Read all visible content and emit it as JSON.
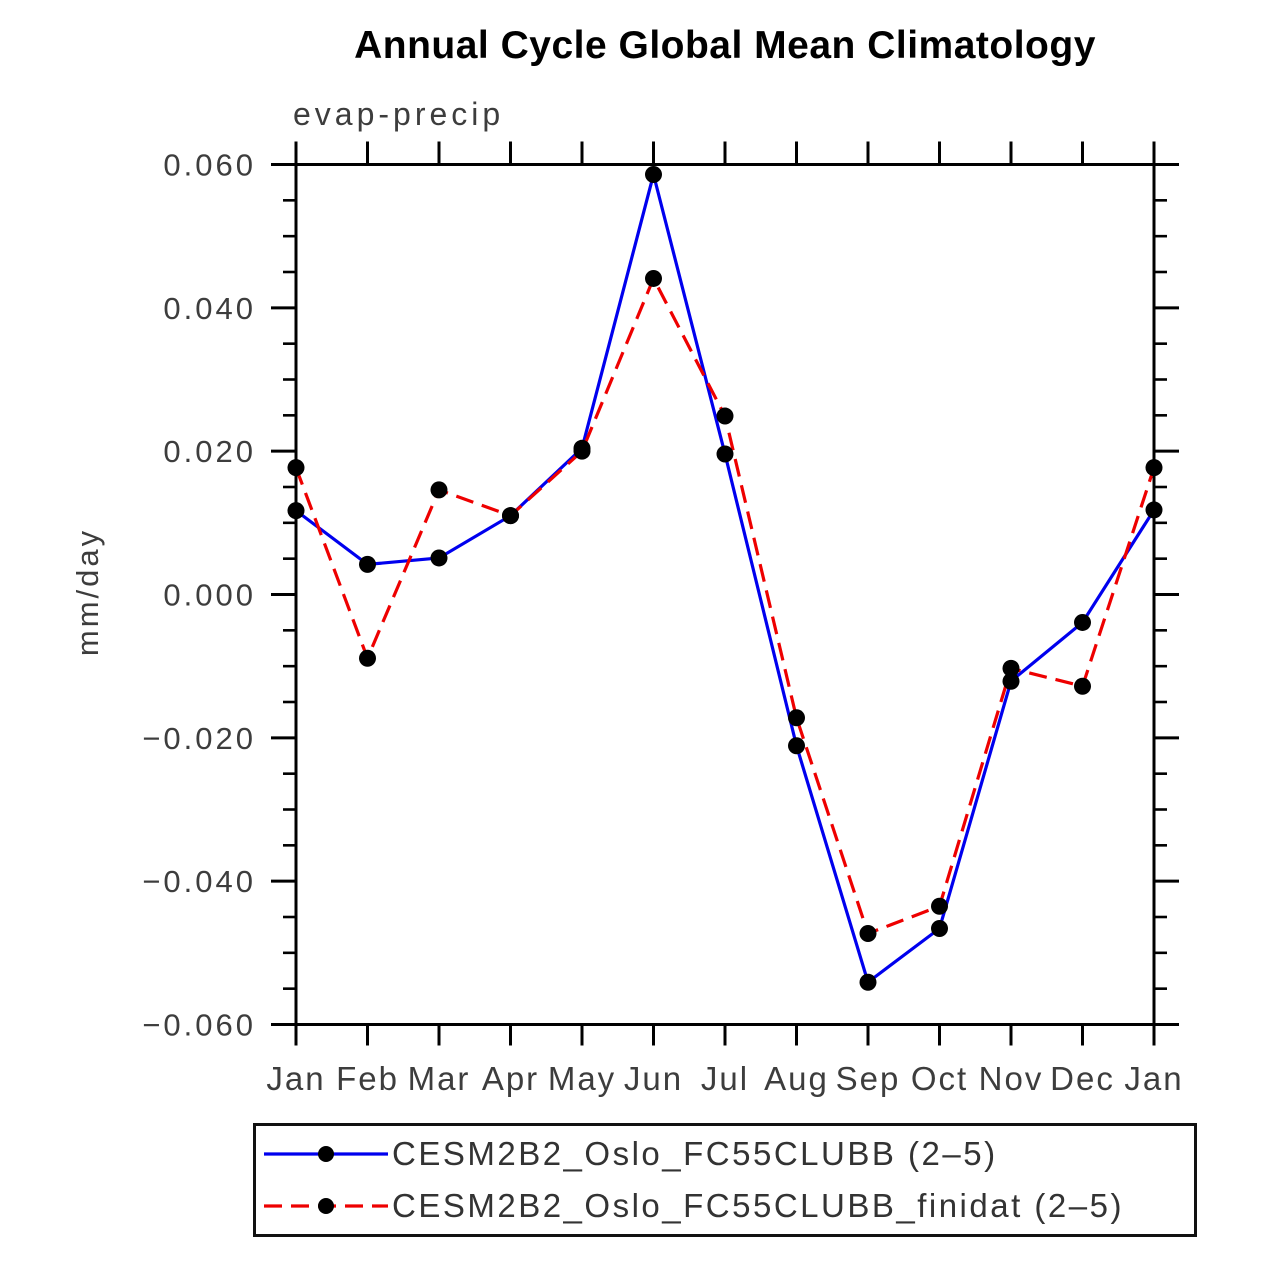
{
  "title": "Annual Cycle Global Mean Climatology",
  "subtitle": "evap-precip",
  "chart_data": {
    "type": "line",
    "title": "Annual Cycle Global Mean Climatology",
    "subtitle": "evap-precip",
    "xlabel": "",
    "ylabel": "mm/day",
    "x_categories": [
      "Jan",
      "Feb",
      "Mar",
      "Apr",
      "May",
      "Jun",
      "Jul",
      "Aug",
      "Sep",
      "Oct",
      "Nov",
      "Dec",
      "Jan"
    ],
    "ylim": [
      -0.06,
      0.06
    ],
    "ytick_values": [
      0.06,
      0.04,
      0.02,
      0.0,
      -0.02,
      -0.04,
      -0.06
    ],
    "ytick_labels": [
      "0.060",
      "0.040",
      "0.020",
      "0.000",
      "−0.020",
      "−0.040",
      "−0.060"
    ],
    "ytick_minor_step": 0.005,
    "grid": false,
    "legend_position": "bottom",
    "marker_color": "#000000",
    "series": [
      {
        "name": "CESM2B2_Oslo_FC55CLUBB (2–5)",
        "color": "#0000ee",
        "style": "solid",
        "marker": "filled-circle",
        "values": [
          0.0117,
          0.0042,
          0.0051,
          0.011,
          0.0204,
          0.0586,
          0.0196,
          -0.0211,
          -0.0541,
          -0.0466,
          -0.0121,
          -0.0039,
          0.0118
        ]
      },
      {
        "name": "CESM2B2_Oslo_FC55CLUBB_finidat (2–5)",
        "color": "#ee0000",
        "style": "dashed",
        "marker": "filled-circle",
        "values": [
          0.0177,
          -0.0089,
          0.0146,
          0.011,
          0.02,
          0.0441,
          0.0249,
          -0.0172,
          -0.0473,
          -0.0435,
          -0.0103,
          -0.0128,
          0.0177
        ]
      }
    ]
  }
}
